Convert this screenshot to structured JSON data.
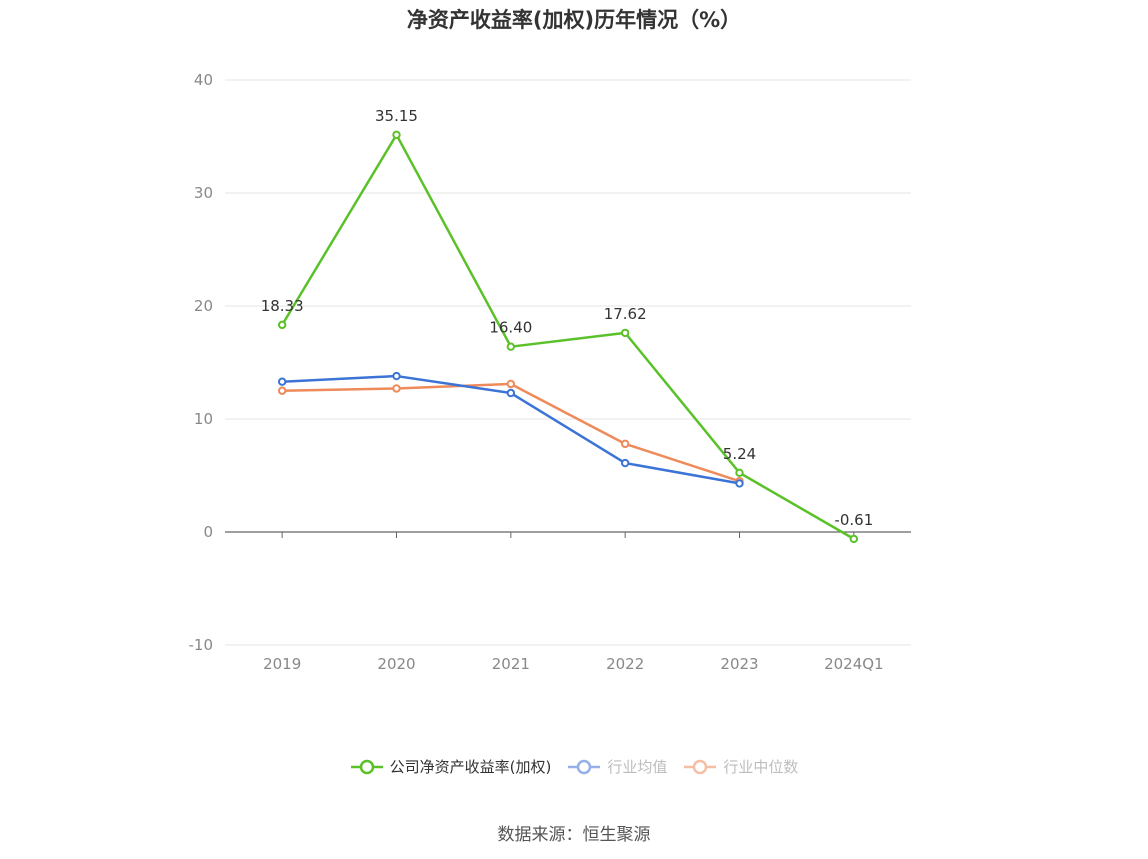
{
  "title": "净资产收益率(加权)历年情况（%）",
  "source": "数据来源：恒生聚源",
  "colors": {
    "company": "#5ac129",
    "industry_avg": "#3b73d6",
    "industry_median": "#ef8a5a",
    "grid": "#e6e6e6",
    "axis": "#666666",
    "tick_text": "#888888",
    "label_text": "#333333"
  },
  "chart_data": {
    "type": "line",
    "categories": [
      "2019",
      "2020",
      "2021",
      "2022",
      "2023",
      "2024Q1"
    ],
    "yticks": [
      -10,
      0,
      10,
      20,
      30,
      40
    ],
    "ylim": [
      -10,
      40
    ],
    "grid": true,
    "legend_position": "bottom",
    "series": [
      {
        "key": "company",
        "name": "公司净资产收益率(加权)",
        "values": [
          18.33,
          35.15,
          16.4,
          17.62,
          5.24,
          -0.61
        ],
        "labels": [
          "18.33",
          "35.15",
          "16.40",
          "17.62",
          "5.24",
          "-0.61"
        ]
      },
      {
        "key": "industry_avg",
        "name": "行业均值",
        "values": [
          13.3,
          13.8,
          12.3,
          6.1,
          4.3,
          null
        ]
      },
      {
        "key": "industry_median",
        "name": "行业中位数",
        "values": [
          12.5,
          12.7,
          13.1,
          7.8,
          4.5,
          null
        ]
      }
    ]
  }
}
